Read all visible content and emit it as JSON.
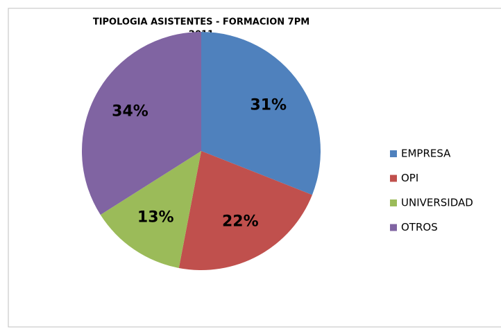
{
  "chart_data": {
    "type": "pie",
    "title": "TIPOLOGIA ASISTENTES - FORMACION 7PM",
    "subtitle": "2011",
    "categories": [
      "EMPRESA",
      "OPI",
      "UNIVERSIDAD",
      "OTROS"
    ],
    "values": [
      31,
      22,
      13,
      34
    ],
    "value_labels": [
      "31%",
      "22%",
      "13%",
      "34%"
    ],
    "colors": [
      "#4f81bd",
      "#c0504d",
      "#9bbb59",
      "#8064a2"
    ],
    "legend": "right"
  }
}
